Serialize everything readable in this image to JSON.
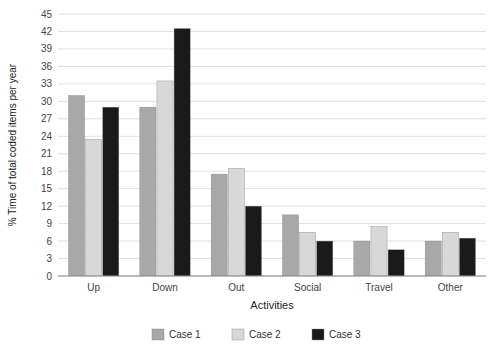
{
  "chart_data": {
    "type": "bar",
    "categories": [
      "Up",
      "Down",
      "Out",
      "Social",
      "Travel",
      "Other"
    ],
    "series": [
      {
        "name": "Case 1",
        "color": "#a8a8a8",
        "values": [
          31.0,
          29.0,
          17.5,
          10.5,
          6.0,
          6.0
        ]
      },
      {
        "name": "Case 2",
        "color": "#d8d8d8",
        "values": [
          23.5,
          33.5,
          18.5,
          7.5,
          8.5,
          7.5
        ]
      },
      {
        "name": "Case 3",
        "color": "#1a1a1a",
        "values": [
          29.0,
          42.5,
          12.0,
          6.0,
          4.5,
          6.5
        ]
      }
    ],
    "x_label": "Activities",
    "y_label": "% Time of total coded items per year",
    "ylim": [
      0,
      45
    ],
    "yticks": [
      0,
      3,
      6,
      9,
      12,
      15,
      18,
      21,
      24,
      27,
      30,
      33,
      36,
      39,
      42,
      45
    ],
    "grid": true,
    "legend": "bottom"
  }
}
